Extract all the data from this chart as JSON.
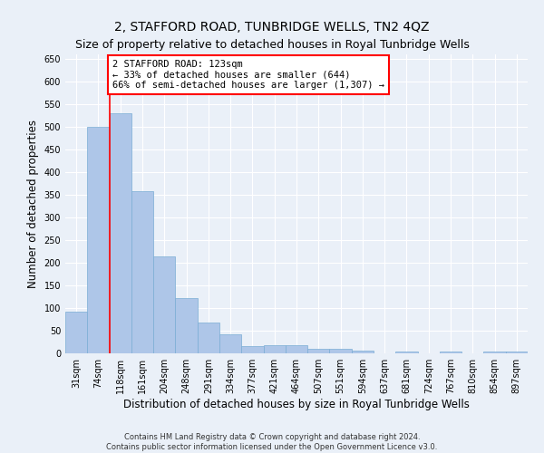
{
  "title": "2, STAFFORD ROAD, TUNBRIDGE WELLS, TN2 4QZ",
  "subtitle": "Size of property relative to detached houses in Royal Tunbridge Wells",
  "xlabel": "Distribution of detached houses by size in Royal Tunbridge Wells",
  "ylabel": "Number of detached properties",
  "footer_line1": "Contains HM Land Registry data © Crown copyright and database right 2024.",
  "footer_line2": "Contains public sector information licensed under the Open Government Licence v3.0.",
  "categories": [
    "31sqm",
    "74sqm",
    "118sqm",
    "161sqm",
    "204sqm",
    "248sqm",
    "291sqm",
    "334sqm",
    "377sqm",
    "421sqm",
    "464sqm",
    "507sqm",
    "551sqm",
    "594sqm",
    "637sqm",
    "681sqm",
    "724sqm",
    "767sqm",
    "810sqm",
    "854sqm",
    "897sqm"
  ],
  "values": [
    93,
    500,
    530,
    358,
    214,
    122,
    69,
    42,
    16,
    18,
    18,
    10,
    11,
    7,
    0,
    5,
    0,
    5,
    0,
    5,
    5
  ],
  "bar_color": "#aec6e8",
  "bar_edge_color": "#7aadd4",
  "red_line_x": 2,
  "annotation_text": "2 STAFFORD ROAD: 123sqm\n← 33% of detached houses are smaller (644)\n66% of semi-detached houses are larger (1,307) →",
  "annotation_box_color": "white",
  "annotation_box_edge_color": "red",
  "ylim": [
    0,
    660
  ],
  "yticks": [
    0,
    50,
    100,
    150,
    200,
    250,
    300,
    350,
    400,
    450,
    500,
    550,
    600,
    650
  ],
  "bg_color": "#eaf0f8",
  "grid_color": "white",
  "title_fontsize": 10,
  "subtitle_fontsize": 9,
  "axis_label_fontsize": 8.5,
  "tick_fontsize": 7,
  "annotation_fontsize": 7.5,
  "footer_fontsize": 6
}
